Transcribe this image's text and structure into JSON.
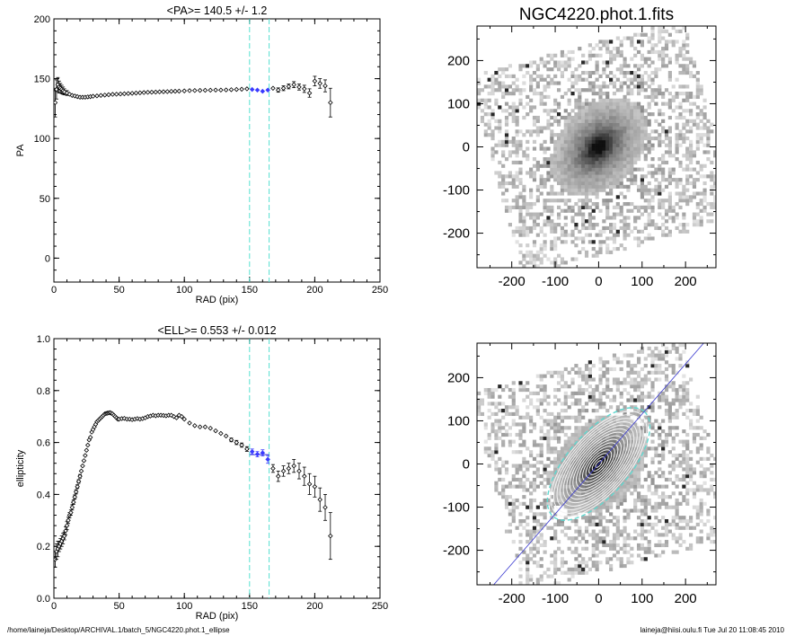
{
  "figure": {
    "footer_left": "/home/laineja/Desktop/ARCHIVAL.1/batch_5/NGC4220.phot.1_ellipse",
    "footer_right": "laineja@hiisi.oulu.fi  Tue Jul 20 11:08:45 2010"
  },
  "chart_data": [
    {
      "id": "pa",
      "type": "scatter",
      "title": "<PA>= 140.5 +/-   1.2",
      "xlabel": "RAD (pix)",
      "ylabel": "PA",
      "xlim": [
        0,
        250
      ],
      "ylim": [
        -20,
        200
      ],
      "xticks": [
        0,
        50,
        100,
        150,
        200,
        250
      ],
      "yticks": [
        0,
        50,
        100,
        150,
        200
      ],
      "vlines": [
        150,
        165
      ],
      "colors": {
        "points": "#000000",
        "highlight": "#3a3aff",
        "vline": "#55e0d0"
      },
      "highlight_range": [
        150,
        165
      ],
      "x": [
        1,
        2,
        3,
        4,
        5,
        6,
        7,
        8,
        10,
        12,
        14,
        16,
        18,
        20,
        22,
        24,
        26,
        28,
        30,
        33,
        36,
        39,
        42,
        45,
        48,
        51,
        54,
        57,
        60,
        63,
        66,
        69,
        72,
        75,
        78,
        81,
        84,
        87,
        90,
        93,
        96,
        100,
        104,
        108,
        112,
        116,
        120,
        124,
        128,
        132,
        136,
        140,
        144,
        148,
        152,
        156,
        160,
        164,
        168,
        172,
        176,
        180,
        184,
        188,
        192,
        196,
        200,
        204,
        208,
        212
      ],
      "y": [
        130,
        141,
        145,
        143,
        142,
        141,
        140,
        139,
        138,
        137,
        136,
        135.5,
        135,
        134.5,
        134.5,
        134.5,
        134.8,
        135,
        135.3,
        135.6,
        136,
        136.3,
        136.6,
        136.9,
        137,
        137.2,
        137.4,
        137.6,
        137.8,
        138,
        138.2,
        138.4,
        138.6,
        138.7,
        138.8,
        139,
        139.1,
        139.2,
        139.4,
        139.5,
        139.6,
        139.8,
        140,
        140.1,
        140.2,
        140.3,
        140.4,
        140.5,
        140.5,
        140.6,
        140.8,
        141,
        141.2,
        141.5,
        141,
        140.5,
        139.5,
        140.5,
        142,
        140.5,
        142,
        143.5,
        145,
        143,
        141.5,
        138,
        148,
        146,
        144,
        130
      ],
      "yerr": [
        12,
        8,
        6,
        5,
        4,
        3.5,
        3,
        2.5,
        2,
        1.5,
        1.2,
        1,
        1,
        1,
        0.8,
        0.8,
        0.8,
        0.8,
        0.8,
        0.8,
        0.8,
        0.8,
        0.8,
        0.8,
        0.8,
        0.8,
        0.8,
        0.8,
        0.8,
        0.8,
        0.8,
        0.8,
        0.8,
        0.8,
        0.8,
        0.8,
        0.8,
        0.8,
        0.8,
        0.8,
        0.8,
        0.8,
        0.8,
        0.8,
        0.8,
        0.8,
        0.8,
        0.8,
        0.8,
        0.8,
        0.8,
        1,
        1,
        1,
        1.2,
        1.2,
        1.2,
        1.5,
        1.5,
        1.8,
        2,
        2,
        2.5,
        2.5,
        3,
        3.5,
        4,
        4,
        5,
        12
      ]
    },
    {
      "id": "ell",
      "type": "scatter",
      "title": "<ELL>= 0.553 +/-  0.012",
      "xlabel": "RAD (pix)",
      "ylabel": "ellipticity",
      "xlim": [
        0,
        250
      ],
      "ylim": [
        0.0,
        1.0
      ],
      "xticks": [
        0,
        50,
        100,
        150,
        200,
        250
      ],
      "yticks": [
        0.0,
        0.2,
        0.4,
        0.6,
        0.8,
        1.0
      ],
      "vlines": [
        150,
        165
      ],
      "hline": {
        "y": 0.553,
        "x": [
          150,
          165
        ]
      },
      "colors": {
        "points": "#000000",
        "highlight": "#3a3aff",
        "vline": "#55e0d0"
      },
      "highlight_range": [
        150,
        165
      ],
      "x": [
        1,
        2,
        3,
        4,
        5,
        6,
        7,
        8,
        9,
        10,
        11,
        12,
        13,
        14,
        15,
        16,
        17,
        18,
        19,
        20,
        21,
        22,
        23,
        24,
        25,
        26,
        27,
        28,
        29,
        30,
        31,
        32,
        33,
        34,
        35,
        36,
        37,
        38,
        39,
        40,
        41,
        42,
        43,
        44,
        45,
        46,
        47,
        48,
        49,
        50,
        52,
        54,
        56,
        58,
        60,
        62,
        64,
        66,
        68,
        70,
        72,
        74,
        76,
        78,
        80,
        82,
        84,
        86,
        88,
        90,
        92,
        94,
        96,
        98,
        100,
        104,
        108,
        112,
        116,
        120,
        124,
        128,
        132,
        136,
        140,
        144,
        148,
        152,
        156,
        160,
        164,
        168,
        172,
        176,
        180,
        184,
        188,
        192,
        196,
        200,
        204,
        208,
        212
      ],
      "y": [
        0.15,
        0.18,
        0.19,
        0.2,
        0.21,
        0.22,
        0.23,
        0.24,
        0.26,
        0.28,
        0.3,
        0.32,
        0.33,
        0.35,
        0.37,
        0.39,
        0.41,
        0.43,
        0.45,
        0.47,
        0.49,
        0.51,
        0.53,
        0.55,
        0.57,
        0.59,
        0.61,
        0.62,
        0.64,
        0.65,
        0.66,
        0.67,
        0.68,
        0.685,
        0.69,
        0.695,
        0.7,
        0.705,
        0.71,
        0.712,
        0.713,
        0.714,
        0.715,
        0.713,
        0.71,
        0.705,
        0.7,
        0.695,
        0.69,
        0.69,
        0.692,
        0.693,
        0.69,
        0.69,
        0.688,
        0.69,
        0.692,
        0.69,
        0.692,
        0.695,
        0.7,
        0.702,
        0.705,
        0.703,
        0.705,
        0.705,
        0.704,
        0.703,
        0.705,
        0.705,
        0.7,
        0.695,
        0.705,
        0.7,
        0.69,
        0.675,
        0.665,
        0.66,
        0.66,
        0.655,
        0.645,
        0.635,
        0.625,
        0.61,
        0.6,
        0.59,
        0.575,
        0.565,
        0.555,
        0.56,
        0.535,
        0.5,
        0.47,
        0.49,
        0.5,
        0.51,
        0.49,
        0.47,
        0.44,
        0.43,
        0.38,
        0.35,
        0.24
      ],
      "yerr": [
        0.03,
        0.03,
        0.03,
        0.02,
        0.02,
        0.02,
        0.02,
        0.015,
        0.015,
        0.015,
        0.012,
        0.01,
        0.01,
        0.01,
        0.008,
        0.008,
        0.008,
        0.007,
        0.007,
        0.007,
        0.006,
        0.006,
        0.006,
        0.005,
        0.005,
        0.005,
        0.005,
        0.005,
        0.005,
        0.005,
        0.005,
        0.005,
        0.005,
        0.005,
        0.005,
        0.005,
        0.005,
        0.005,
        0.005,
        0.005,
        0.005,
        0.005,
        0.005,
        0.005,
        0.005,
        0.005,
        0.005,
        0.005,
        0.005,
        0.005,
        0.005,
        0.005,
        0.005,
        0.005,
        0.005,
        0.005,
        0.005,
        0.005,
        0.005,
        0.005,
        0.005,
        0.005,
        0.005,
        0.005,
        0.005,
        0.005,
        0.005,
        0.005,
        0.005,
        0.005,
        0.005,
        0.005,
        0.005,
        0.005,
        0.005,
        0.005,
        0.005,
        0.005,
        0.005,
        0.005,
        0.005,
        0.006,
        0.006,
        0.007,
        0.008,
        0.008,
        0.009,
        0.01,
        0.01,
        0.012,
        0.015,
        0.015,
        0.02,
        0.02,
        0.02,
        0.025,
        0.03,
        0.035,
        0.04,
        0.04,
        0.045,
        0.05,
        0.09
      ]
    },
    {
      "id": "img1",
      "type": "heatmap",
      "title": "NGC4220.phot.1.fits",
      "xlim": [
        -280,
        270
      ],
      "ylim": [
        -280,
        280
      ],
      "xticks": [
        -200,
        -100,
        0,
        100,
        200
      ],
      "yticks": [
        -200,
        -100,
        0,
        100,
        200
      ],
      "galaxy": {
        "pa_deg": 140.5,
        "ellipticity": 0.553
      }
    },
    {
      "id": "img2",
      "type": "heatmap",
      "title": "",
      "xlim": [
        -280,
        270
      ],
      "ylim": [
        -280,
        280
      ],
      "xticks": [
        -200,
        -100,
        0,
        100,
        200
      ],
      "yticks": [
        -200,
        -100,
        0,
        100,
        200
      ],
      "galaxy": {
        "pa_deg": 140.5,
        "ellipticity": 0.553
      },
      "contours": {
        "count": 16,
        "max_radius": 160
      },
      "colors": {
        "contour": "#f4f4f4",
        "outer_contour": "#60d8d0",
        "major_axis": "#3a3ad0"
      }
    }
  ]
}
